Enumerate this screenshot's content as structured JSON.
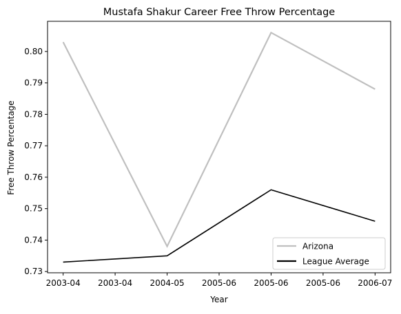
{
  "chart_data": {
    "type": "line",
    "title": "Mustafa Shakur Career Free Throw Percentage",
    "xlabel": "Year",
    "ylabel": "Free Throw Percentage",
    "x": [
      "2003-04",
      "2004-05",
      "2005-06",
      "2006-07"
    ],
    "xtick_labels": [
      "2003-04",
      "2003-04",
      "2004-05",
      "2005-06",
      "2005-06",
      "2005-06",
      "2006-07"
    ],
    "ytick_values": [
      0.73,
      0.74,
      0.75,
      0.76,
      0.77,
      0.78,
      0.79,
      0.8
    ],
    "ytick_labels": [
      "0.73",
      "0.74",
      "0.75",
      "0.76",
      "0.77",
      "0.78",
      "0.79",
      "0.80"
    ],
    "ylim": [
      0.7296,
      0.8096
    ],
    "xlim": [
      -0.15,
      3.15
    ],
    "grid": false,
    "legend_position": "lower right",
    "series": [
      {
        "name": "Arizona",
        "values": [
          0.803,
          0.738,
          0.806,
          0.788
        ],
        "color": "#bfbfbf"
      },
      {
        "name": "League Average",
        "values": [
          0.733,
          0.735,
          0.756,
          0.746
        ],
        "color": "#000000"
      }
    ]
  }
}
